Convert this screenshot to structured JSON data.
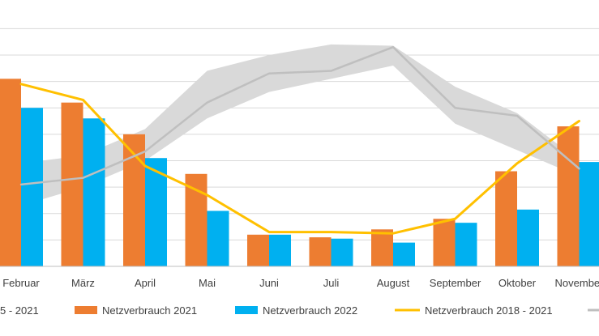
{
  "colors": {
    "series_2021": "#ED7D31",
    "series_2022": "#00B0F0",
    "series_avg_line": "#FFC000",
    "series_gray_line": "#BFBFBF",
    "band": "#D9D9D9",
    "grid": "#D9D9D9",
    "axis": "#BFBFBF"
  },
  "chart_data": {
    "type": "bar",
    "categories": [
      "Februar",
      "März",
      "April",
      "Mai",
      "Juni",
      "Juli",
      "August",
      "September",
      "Oktober",
      "November"
    ],
    "ylim": [
      0,
      9.5
    ],
    "grid": true,
    "grid_step": 1,
    "legend_position": "bottom",
    "series": [
      {
        "name": "Netzverbrauch 2021",
        "kind": "bar",
        "values": [
          7.1,
          6.2,
          5.0,
          3.5,
          1.2,
          1.1,
          1.4,
          1.8,
          3.6,
          5.3
        ]
      },
      {
        "name": "Netzverbrauch 2022",
        "kind": "bar",
        "values": [
          6.0,
          5.6,
          4.1,
          2.1,
          1.2,
          1.05,
          0.9,
          1.65,
          2.15,
          3.95
        ]
      },
      {
        "name": "Netzverbrauch 2018 - 2021",
        "kind": "line",
        "values": [
          6.9,
          6.3,
          3.8,
          2.7,
          1.3,
          1.3,
          1.25,
          1.8,
          3.9,
          5.5
        ]
      },
      {
        "name": "",
        "kind": "line",
        "values": [
          3.1,
          3.35,
          4.35,
          6.2,
          7.3,
          7.4,
          8.3,
          6.0,
          5.7,
          3.7
        ]
      },
      {
        "name": "",
        "kind": "band",
        "lower": [
          2.3,
          3.0,
          4.0,
          5.6,
          6.6,
          7.1,
          7.6,
          5.4,
          4.4,
          3.4
        ],
        "upper": [
          3.9,
          4.2,
          5.2,
          7.4,
          8.0,
          8.4,
          8.35,
          6.8,
          5.8,
          4.0
        ]
      }
    ],
    "legend_entries": [
      "5 - 2021",
      "Netzverbrauch 2021",
      "Netzverbrauch 2022",
      "Netzverbrauch 2018 - 2021",
      ""
    ]
  }
}
